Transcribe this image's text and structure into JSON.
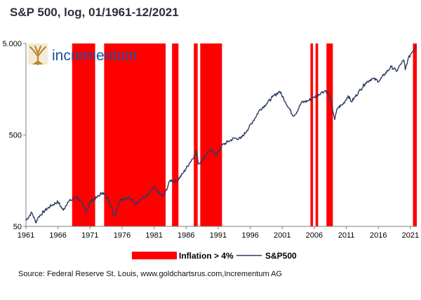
{
  "header": {
    "title": "S&P 500, log, 01/1961-12/2021"
  },
  "logo": {
    "text": "incrementum",
    "icon": "tree-logo-icon",
    "color": "#1d4fa0",
    "icon_color": "#b8892e"
  },
  "chart_data": {
    "type": "line",
    "title": "S&P 500, log, 01/1961-12/2021",
    "y_scale": "log",
    "ylim": [
      50,
      5000
    ],
    "xlim": [
      1961,
      2022
    ],
    "y_ticks": [
      {
        "value": 50,
        "label": "50"
      },
      {
        "value": 500,
        "label": "500"
      },
      {
        "value": 5000,
        "label": "5.000"
      }
    ],
    "x_ticks": [
      "1961",
      "1966",
      "1971",
      "1976",
      "1981",
      "1986",
      "1991",
      "1996",
      "2001",
      "2006",
      "2011",
      "2016",
      "2021"
    ],
    "legend": {
      "placement": "bottom",
      "entries": [
        "Inflation > 4%",
        "S&P500"
      ]
    },
    "series": [
      {
        "name": "S&P500",
        "color": "#2c3a63",
        "points": [
          [
            1961.0,
            58
          ],
          [
            1961.9,
            71
          ],
          [
            1962.4,
            59
          ],
          [
            1962.5,
            55
          ],
          [
            1963.0,
            64
          ],
          [
            1964.0,
            75
          ],
          [
            1965.0,
            85
          ],
          [
            1966.0,
            93
          ],
          [
            1966.8,
            75
          ],
          [
            1967.5,
            92
          ],
          [
            1968.0,
            96
          ],
          [
            1968.9,
            106
          ],
          [
            1969.5,
            94
          ],
          [
            1970.4,
            72
          ],
          [
            1971.0,
            93
          ],
          [
            1972.0,
            103
          ],
          [
            1973.0,
            118
          ],
          [
            1974.0,
            95
          ],
          [
            1974.8,
            64
          ],
          [
            1975.0,
            70
          ],
          [
            1975.5,
            92
          ],
          [
            1976.0,
            100
          ],
          [
            1977.0,
            104
          ],
          [
            1978.1,
            88
          ],
          [
            1979.0,
            100
          ],
          [
            1980.0,
            108
          ],
          [
            1980.9,
            135
          ],
          [
            1982.3,
            106
          ],
          [
            1982.6,
            110
          ],
          [
            1983.5,
            160
          ],
          [
            1984.5,
            155
          ],
          [
            1985.5,
            190
          ],
          [
            1986.5,
            245
          ],
          [
            1987.7,
            330
          ],
          [
            1987.9,
            240
          ],
          [
            1988.5,
            265
          ],
          [
            1989.6,
            345
          ],
          [
            1990.8,
            305
          ],
          [
            1991.5,
            380
          ],
          [
            1992.5,
            420
          ],
          [
            1993.5,
            460
          ],
          [
            1994.5,
            455
          ],
          [
            1995.5,
            560
          ],
          [
            1996.5,
            720
          ],
          [
            1997.5,
            940
          ],
          [
            1998.5,
            1090
          ],
          [
            1999.5,
            1300
          ],
          [
            2000.6,
            1500
          ],
          [
            2001.5,
            1150
          ],
          [
            2002.7,
            815
          ],
          [
            2003.1,
            850
          ],
          [
            2004.0,
            1130
          ],
          [
            2005.0,
            1180
          ],
          [
            2006.0,
            1290
          ],
          [
            2007.0,
            1440
          ],
          [
            2007.8,
            1530
          ],
          [
            2008.5,
            1250
          ],
          [
            2009.2,
            735
          ],
          [
            2009.6,
            980
          ],
          [
            2010.5,
            1090
          ],
          [
            2011.3,
            1340
          ],
          [
            2011.8,
            1150
          ],
          [
            2013.0,
            1500
          ],
          [
            2014.0,
            1850
          ],
          [
            2015.0,
            2070
          ],
          [
            2016.1,
            1940
          ],
          [
            2017.0,
            2320
          ],
          [
            2018.0,
            2780
          ],
          [
            2018.9,
            2500
          ],
          [
            2019.5,
            2980
          ],
          [
            2020.0,
            3270
          ],
          [
            2020.2,
            2580
          ],
          [
            2020.6,
            3300
          ],
          [
            2021.0,
            3780
          ],
          [
            2021.5,
            4300
          ],
          [
            2021.9,
            4700
          ]
        ]
      }
    ],
    "inflation_periods": {
      "name": "Inflation > 4%",
      "color": "#ff0000",
      "ranges": [
        [
          1968.2,
          1971.8
        ],
        [
          1973.2,
          1982.8
        ],
        [
          1983.8,
          1984.8
        ],
        [
          1987.2,
          1987.8
        ],
        [
          1988.2,
          1991.6
        ],
        [
          2005.4,
          2005.8
        ],
        [
          2006.2,
          2006.6
        ],
        [
          2007.9,
          2008.9
        ],
        [
          2021.4,
          2022.0
        ]
      ]
    }
  },
  "footer": {
    "source": "Source: Federal Reserve St. Louis, www.goldchartsrus.com,Incrementum AG"
  }
}
